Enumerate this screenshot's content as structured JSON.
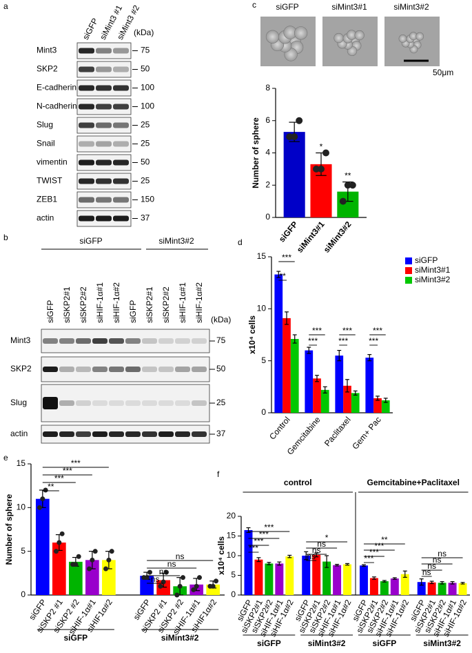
{
  "panel_labels": [
    "a",
    "b",
    "c",
    "d",
    "e",
    "f"
  ],
  "blot_a": {
    "columns": [
      "siGFP",
      "siMint3 #1",
      "siMint3 #2"
    ],
    "unit": "(kDa)",
    "rows": [
      {
        "label": "Mint3",
        "marker": 75
      },
      {
        "label": "SKP2",
        "marker": 50
      },
      {
        "label": "E-cadherin",
        "marker": 100
      },
      {
        "label": "N-cadherin",
        "marker": 100
      },
      {
        "label": "Slug",
        "marker": 25
      },
      {
        "label": "Snail",
        "marker": 25
      },
      {
        "label": "vimentin",
        "marker": 50
      },
      {
        "label": "TWIST",
        "marker": 25
      },
      {
        "label": "ZEB1",
        "marker": 150
      },
      {
        "label": "actin",
        "marker": 37
      }
    ]
  },
  "blot_b": {
    "groups": [
      "siGFP",
      "siMint3#2"
    ],
    "unit": "(kDa)",
    "columns": [
      "siGFP",
      "siSKP2#1",
      "siSKP2#2",
      "siHIF-1α#1",
      "siHIF-1α#2",
      "siGFP",
      "siSKP2#1",
      "siSKP2#2",
      "siHIF-1α#1",
      "siHIF-1α#2"
    ],
    "rows": [
      {
        "label": "Mint3",
        "marker": 75
      },
      {
        "label": "SKP2",
        "marker": 50
      },
      {
        "label": "Slug",
        "marker": 25
      },
      {
        "label": "actin",
        "marker": 37
      }
    ]
  },
  "images_c": {
    "labels": [
      "siGFP",
      "siMint3#1",
      "siMint3#2"
    ],
    "scale_bar": "50μm"
  },
  "chart_data": [
    {
      "type": "bar",
      "ylabel": "Number of sphere",
      "categories": [
        "siGFP",
        "siMint3#1",
        "siMint3#2"
      ],
      "values": [
        5.3,
        3.3,
        1.6
      ],
      "errors": [
        0.6,
        0.7,
        0.6
      ],
      "points": [
        [
          5.0,
          5.0,
          6.0
        ],
        [
          3.0,
          3.0,
          4.0
        ],
        [
          1.0,
          2.0,
          2.0
        ]
      ],
      "colors": [
        "#0000c8",
        "#ff0000",
        "#00b400"
      ],
      "ylim": [
        0,
        8
      ],
      "yticks": [
        0,
        2,
        4,
        6,
        8
      ],
      "annotations": [
        "*",
        "**"
      ]
    },
    {
      "type": "grouped_bar",
      "ylabel": "x10⁴ cells",
      "categories": [
        "Control",
        "Gemcitabine",
        "Paclitaxel",
        "Gem+ Pac"
      ],
      "series": [
        {
          "name": "siGFP",
          "color": "#0000ff",
          "values": [
            13.3,
            6.0,
            5.5,
            5.3
          ],
          "errors": [
            0.3,
            0.3,
            0.5,
            0.3
          ]
        },
        {
          "name": "siMint3#1",
          "color": "#ff0000",
          "values": [
            9.1,
            3.3,
            2.6,
            1.4
          ],
          "errors": [
            0.6,
            0.3,
            0.6,
            0.2
          ]
        },
        {
          "name": "siMint3#2",
          "color": "#00c800",
          "values": [
            7.1,
            2.2,
            1.9,
            1.2
          ],
          "errors": [
            0.4,
            0.3,
            0.2,
            0.2
          ]
        }
      ],
      "ylim": [
        0,
        15
      ],
      "yticks": [
        0,
        5,
        10,
        15
      ],
      "legend": "top-right",
      "significance": [
        "***",
        "**",
        "***",
        "***",
        "***",
        "***",
        "***",
        "***"
      ]
    },
    {
      "type": "bar",
      "ylabel": "Number of sphere",
      "categories": [
        "siGFP",
        "siSKP2 #1",
        "siSKP2 #2",
        "siHIF-1α#1",
        "siHIF1α#2",
        "siGFP",
        "siSKP2 #1",
        "siSKP2 #2",
        "siHIF-1α#1",
        "siHIF1α#2"
      ],
      "values": [
        11,
        6,
        3.8,
        4,
        4,
        2.2,
        1.7,
        1,
        1.2,
        1.2
      ],
      "errors": [
        1,
        0.9,
        0.5,
        1,
        1,
        0.4,
        0.8,
        1,
        0.7,
        0.4
      ],
      "points": [
        [
          10,
          11,
          12
        ],
        [
          5,
          6,
          7
        ],
        [
          3.5,
          3.5,
          4.4
        ],
        [
          3,
          4,
          5
        ],
        [
          3,
          4,
          5
        ],
        [
          2,
          2,
          2.6
        ],
        [
          1,
          1.5,
          2.6
        ],
        [
          0,
          1,
          2
        ],
        [
          0.6,
          1,
          2
        ],
        [
          1,
          1,
          1.6
        ]
      ],
      "colors": [
        "#0000ff",
        "#ff0000",
        "#00b400",
        "#9900cc",
        "#ffff00"
      ],
      "ylim": [
        0,
        15
      ],
      "yticks": [
        0,
        5,
        10,
        15
      ],
      "groups": [
        "siGFP",
        "siMint3#2"
      ],
      "significance": [
        "**",
        "***",
        "***",
        "***",
        "ns",
        "ns",
        "ns",
        "ns"
      ]
    },
    {
      "type": "bar",
      "ylabel": "x10⁴ cells",
      "categories": [
        "siGFP",
        "siSKP2#1",
        "siSKP2#2",
        "siHIF-1α#1",
        "siHIF-1α#2",
        "siGFP",
        "siSKP2#1",
        "siSKP2#2",
        "siHIF-1α#1",
        "siHIF-1α#2",
        "siGFP",
        "siSKP2#1",
        "siSKP2#2",
        "siHIF-1α#1",
        "siHIF-1α#2",
        "siGFP",
        "siSKP2#1",
        "siSKP2#2",
        "siHIF-1α#1",
        "siHIF-1α#2"
      ],
      "values": [
        16.5,
        9,
        8,
        8,
        9.8,
        10,
        10.2,
        8.5,
        7.6,
        7.8,
        7.5,
        4.3,
        3.5,
        4.2,
        5.3,
        3.3,
        3.2,
        3.1,
        3.1,
        3.0
      ],
      "errors": [
        0.6,
        0.5,
        0.3,
        0.4,
        0.3,
        1.0,
        0.5,
        1.5,
        0.2,
        0.2,
        0.2,
        0.3,
        0.2,
        0.2,
        0.8,
        0.8,
        0.3,
        0.3,
        0.3,
        0.2
      ],
      "colors": [
        "#0000ff",
        "#ff0000",
        "#00b400",
        "#9900cc",
        "#ffff00"
      ],
      "ylim": [
        0,
        20
      ],
      "yticks": [
        0,
        5,
        10,
        15,
        20
      ],
      "headers": [
        "control",
        "Gemcitabine+Paclitaxel"
      ],
      "groups": [
        "siGFP",
        "siMint3#2",
        "siGFP",
        "siMint3#2"
      ],
      "significance": [
        "***",
        "***",
        "***",
        "***",
        "ns",
        "ns",
        "ns",
        "*",
        "***",
        "***",
        "***",
        "**",
        "ns",
        "ns",
        "ns",
        "ns"
      ]
    }
  ]
}
